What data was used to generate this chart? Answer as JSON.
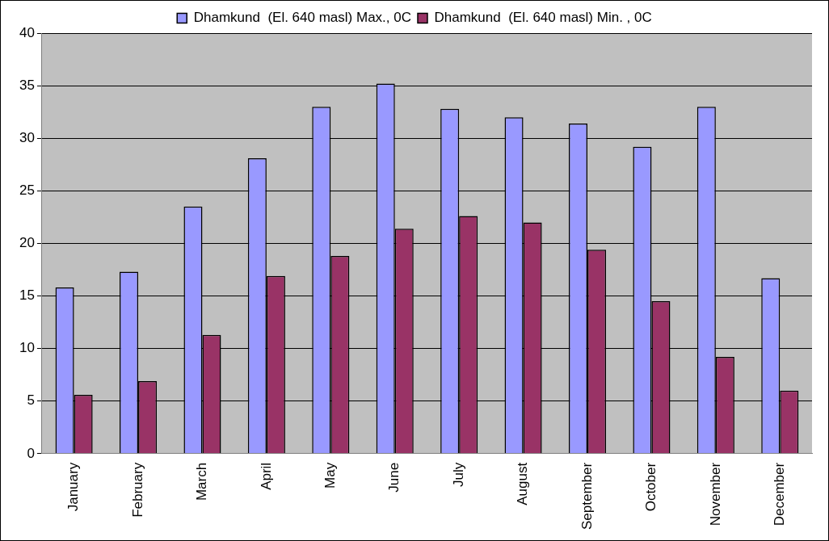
{
  "chart_data": {
    "type": "bar",
    "categories": [
      "January",
      "February",
      "March",
      "April",
      "May",
      "June",
      "July",
      "August",
      "September",
      "October",
      "November",
      "December"
    ],
    "series": [
      {
        "name": "Dhamkund  (El. 640 masl) Max., 0C",
        "color": "#9999ff",
        "values": [
          15.8,
          17.3,
          23.5,
          28.1,
          33.0,
          35.2,
          32.8,
          32.0,
          31.4,
          29.2,
          33.0,
          16.7
        ]
      },
      {
        "name": "Dhamkund  (El. 640 masl) Min. , 0C",
        "color": "#993366",
        "values": [
          5.6,
          6.9,
          11.3,
          16.9,
          18.8,
          21.4,
          22.6,
          22.0,
          19.4,
          14.5,
          9.2,
          6.0
        ]
      }
    ],
    "ylim": [
      0,
      40
    ],
    "yticks": [
      0,
      5,
      10,
      15,
      20,
      25,
      30,
      35,
      40
    ],
    "grid": "y",
    "legend": "top"
  }
}
